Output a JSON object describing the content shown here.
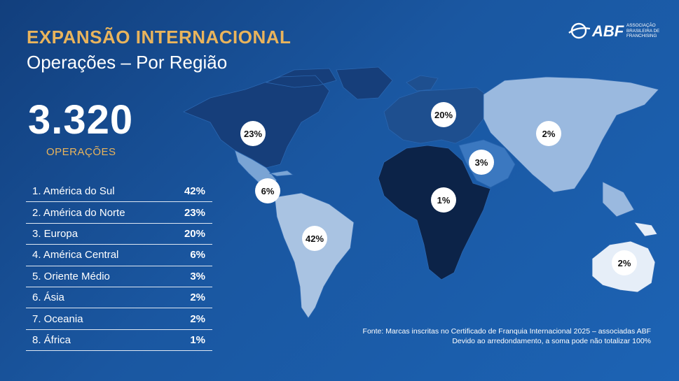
{
  "header": {
    "title": "EXPANSÃO INTERNACIONAL",
    "subtitle": "Operações – Por Região"
  },
  "logo": {
    "name": "ABF",
    "tagline": "Associação Brasileira de Franchising"
  },
  "summary": {
    "total": "3.320",
    "label": "OPERAÇÕES"
  },
  "ranking": [
    {
      "label": "1. América do Sul",
      "value": "42%"
    },
    {
      "label": "2. América do Norte",
      "value": "23%"
    },
    {
      "label": "3. Europa",
      "value": "20%"
    },
    {
      "label": "4. América Central",
      "value": "6%"
    },
    {
      "label": "5. Oriente Médio",
      "value": "3%"
    },
    {
      "label": "6. Ásia",
      "value": "2%"
    },
    {
      "label": "7. Oceania",
      "value": "2%"
    },
    {
      "label": "8. África",
      "value": "1%"
    }
  ],
  "colors": {
    "accent": "#e9b45c",
    "background": "#1a57a1",
    "africa": "#0c2348",
    "north_america": "#163e7a",
    "europe": "#1e4f8f",
    "middle_east": "#3b78c0",
    "south_america": "#a9c3e2",
    "asia": "#9ab9df",
    "oceania": "#e6eef8",
    "central_america": "#7aa4d4"
  },
  "chart_data": {
    "type": "map",
    "unit": "%",
    "regions": [
      {
        "name": "América do Sul",
        "value": 42,
        "label": "42%"
      },
      {
        "name": "América do Norte",
        "value": 23,
        "label": "23%"
      },
      {
        "name": "Europa",
        "value": 20,
        "label": "20%"
      },
      {
        "name": "América Central",
        "value": 6,
        "label": "6%"
      },
      {
        "name": "Oriente Médio",
        "value": 3,
        "label": "3%"
      },
      {
        "name": "Ásia",
        "value": 2,
        "label": "2%"
      },
      {
        "name": "Oceania",
        "value": 2,
        "label": "2%"
      },
      {
        "name": "África",
        "value": 1,
        "label": "1%"
      }
    ]
  },
  "footer": {
    "source_line1": "Fonte: Marcas inscritas no Certificado de Franquia Internacional 2025 – associadas ABF",
    "source_line2": "Devido ao arredondamento, a soma pode não totalizar 100%"
  }
}
